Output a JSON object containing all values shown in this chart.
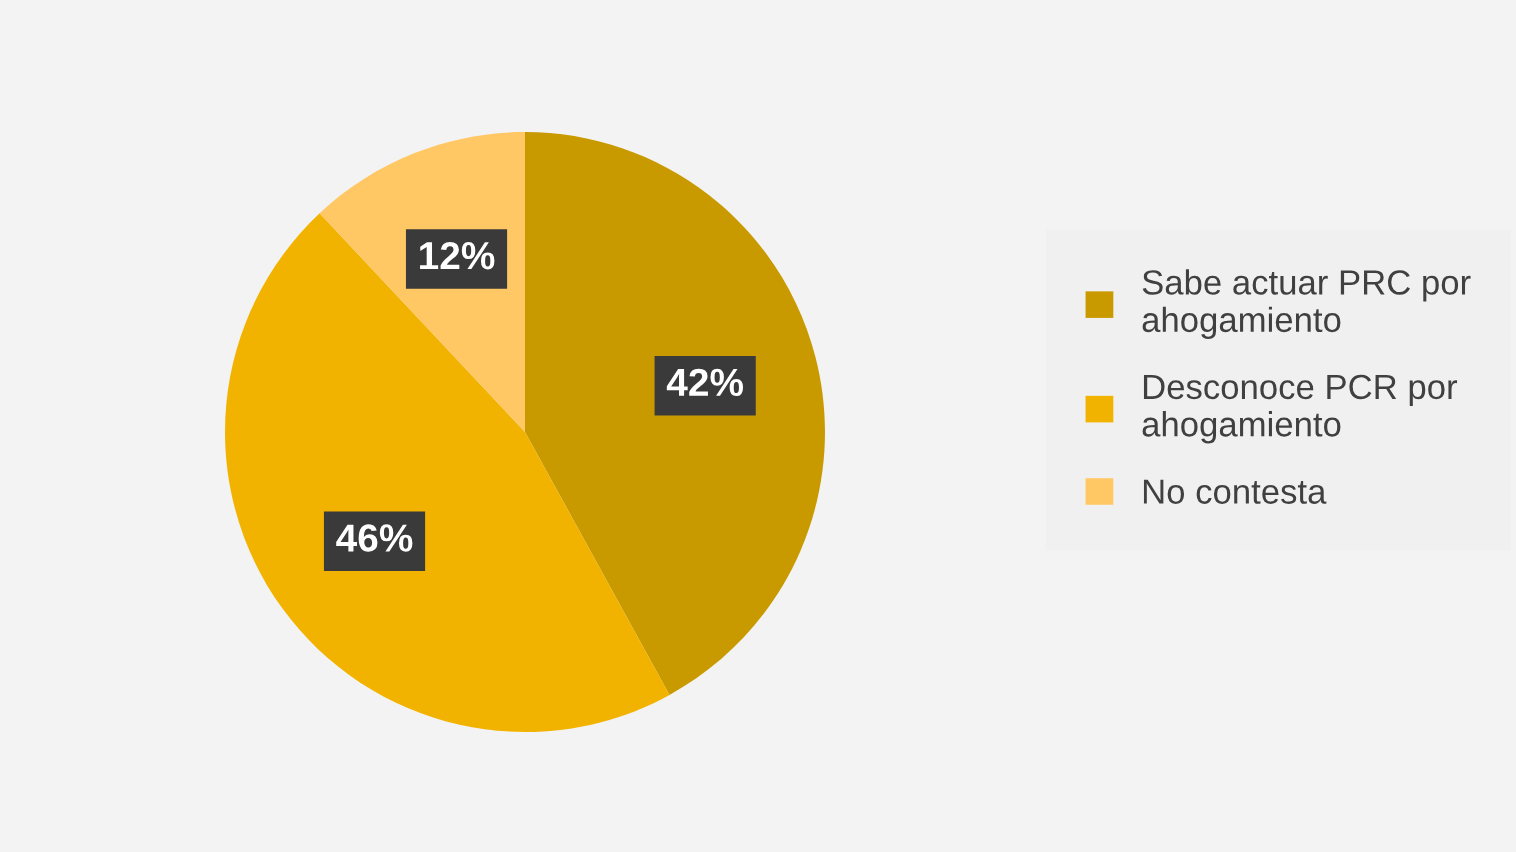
{
  "chart_data": {
    "type": "pie",
    "categories": [
      "Sabe actuar PRC por\nahogamiento",
      "Desconoce PCR por\nahogamiento",
      "No contesta"
    ],
    "values": [
      42,
      46,
      12
    ],
    "colors": [
      "#c99a00",
      "#f2b300",
      "#ffc864"
    ],
    "value_labels": [
      "42%",
      "46%",
      "12%"
    ],
    "legend": "right"
  }
}
